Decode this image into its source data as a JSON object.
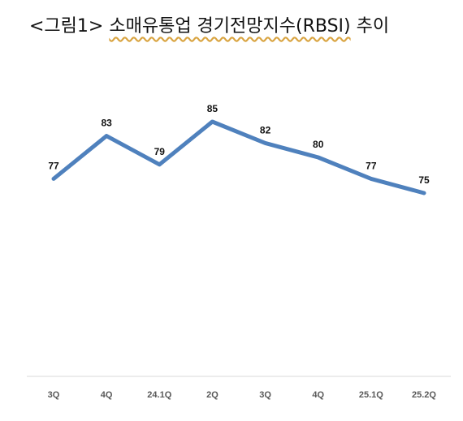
{
  "title_prefix": "<그림1>",
  "title_main": "소매유통업 경기전망지수(RBSI)",
  "title_suffix": "추이",
  "colors": {
    "line": "#4f81bd",
    "highlight_label": "#c00000",
    "axis": "#d9d9d9"
  },
  "chart_data": {
    "type": "line",
    "title": "<그림1> 소매유통업 경기전망지수(RBSI) 추이",
    "categories": [
      "3Q",
      "4Q",
      "24.1Q",
      "2Q",
      "3Q",
      "4Q",
      "25.1Q",
      "25.2Q"
    ],
    "series": [
      {
        "values": [
          77,
          83,
          79,
          85,
          82,
          80,
          77,
          75
        ]
      }
    ],
    "data_labels": [
      "77",
      "83",
      "79",
      "85",
      "82",
      "80",
      "77",
      "75"
    ],
    "highlight_last": true,
    "ylim": [
      0,
      100
    ],
    "grid": false,
    "xlabel": "",
    "ylabel": ""
  }
}
